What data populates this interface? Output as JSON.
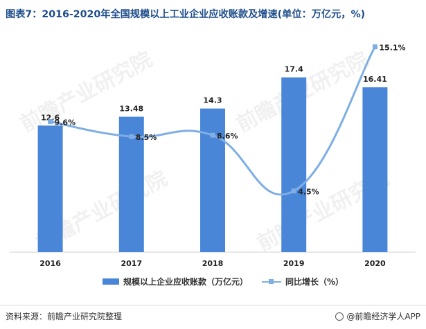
{
  "title": "图表7：2016-2020年全国规模以上工业企业应收账款及增速(单位：万亿元，%)",
  "watermark": "前瞻产业研究院",
  "chart_data": {
    "type": "bar+line",
    "categories": [
      "2016",
      "2017",
      "2018",
      "2019",
      "2020"
    ],
    "series": [
      {
        "name": "规模以上企业应收账款（万亿元）",
        "type": "bar",
        "values": [
          12.6,
          13.48,
          14.3,
          17.4,
          16.41
        ],
        "labels": [
          "12.6",
          "13.48",
          "14.3",
          "17.4",
          "16.41"
        ],
        "color": "#4a86d8",
        "ylim": [
          0,
          20
        ]
      },
      {
        "name": "同比增长（%）",
        "type": "line",
        "values": [
          9.6,
          8.5,
          8.6,
          4.5,
          15.1
        ],
        "labels": [
          "9.6%",
          "8.5%",
          "8.6%",
          "4.5%",
          "15.1%"
        ],
        "color": "#7eaee4",
        "ylim": [
          0,
          16
        ]
      }
    ],
    "legend_position": "bottom"
  },
  "footer": {
    "source": "资料来源：前瞻产业研究院整理",
    "brand": "@前瞻经济学人APP"
  }
}
